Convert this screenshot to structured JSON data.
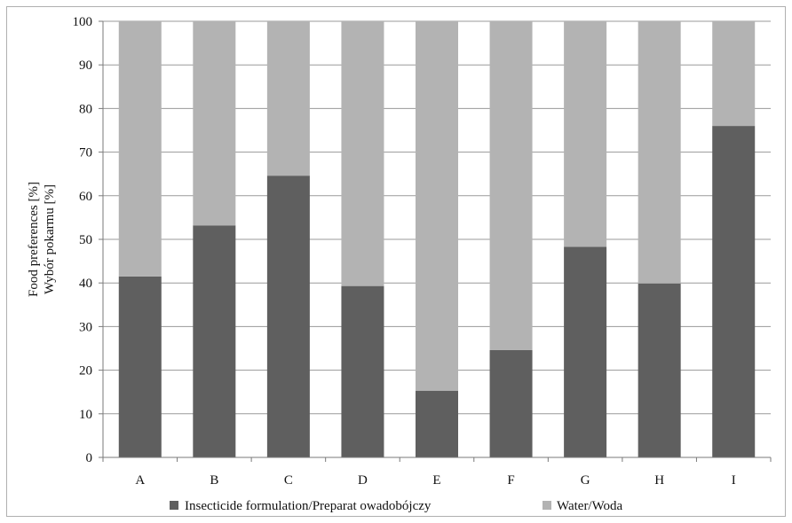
{
  "chart_data": {
    "type": "bar",
    "stacked": true,
    "categories": [
      "A",
      "B",
      "C",
      "D",
      "E",
      "F",
      "G",
      "H",
      "I"
    ],
    "series": [
      {
        "name": "Insecticide formulation/Preparat owadobójczy",
        "color": "#5f5f5f",
        "values": [
          41.5,
          53.2,
          64.6,
          39.3,
          15.3,
          24.6,
          48.3,
          39.9,
          76.0
        ]
      },
      {
        "name": "Water/Woda",
        "color": "#b3b3b3",
        "values": [
          58.5,
          46.8,
          35.4,
          60.7,
          84.7,
          75.4,
          51.7,
          60.1,
          24.0
        ]
      }
    ],
    "title": "",
    "ylabel_lines": [
      "Food preferences [%]",
      "Wybór pokarmu [%]"
    ],
    "xlabel": "",
    "ylim": [
      0,
      100
    ],
    "yticks": [
      0,
      10,
      20,
      30,
      40,
      50,
      60,
      70,
      80,
      90,
      100
    ],
    "grid": true,
    "legend_position": "bottom"
  }
}
